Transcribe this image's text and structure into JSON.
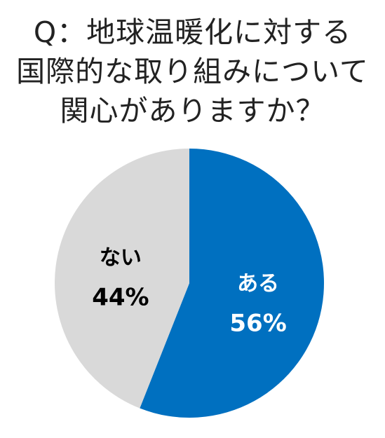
{
  "chart_data": {
    "type": "pie",
    "title_lines": [
      "Q：地球温暖化に対する",
      "国際的な取り組みについて",
      "関心がありますか？"
    ],
    "slices": [
      {
        "label": "ある",
        "value": 56,
        "value_label": "56%",
        "color": "#0070C0",
        "text_color": "#ffffff"
      },
      {
        "label": "ない",
        "value": 44,
        "value_label": "44%",
        "color": "#D9D9D9",
        "text_color": "#000000"
      }
    ],
    "start": "12 o'clock",
    "direction": "clockwise",
    "legend": "none"
  }
}
